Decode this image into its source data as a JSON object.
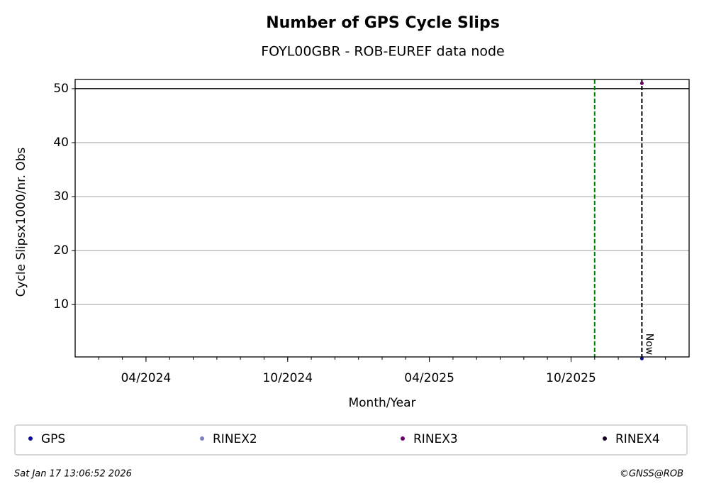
{
  "chart_data": {
    "type": "scatter",
    "title": "Number of GPS Cycle Slips",
    "subtitle": "FOYL00GBR - ROB-EUREF data node",
    "y_label": "Cycle Slipsx1000/nr. Obs",
    "x_label": "Month/Year",
    "xlim": [
      "2024-01",
      "2026-03"
    ],
    "xticks": [
      {
        "value": "2024-04",
        "label": "04/2024"
      },
      {
        "value": "2024-10",
        "label": "10/2024"
      },
      {
        "value": "2025-04",
        "label": "04/2025"
      },
      {
        "value": "2025-10",
        "label": "10/2025"
      }
    ],
    "ylim": [
      0.3,
      51.7
    ],
    "yticks": [
      10,
      20,
      30,
      40,
      50
    ],
    "grid": true,
    "series": [
      {
        "name": "GPS",
        "color": "#0a0a96",
        "x": [
          "2026-01"
        ],
        "values": [
          0
        ]
      },
      {
        "name": "RINEX2",
        "color": "#8080c0",
        "x": [],
        "values": []
      },
      {
        "name": "RINEX3",
        "color": "#6a006a",
        "x": [
          "2026-01"
        ],
        "values": [
          51
        ]
      },
      {
        "name": "RINEX4",
        "color": "#1a0020",
        "x": [],
        "values": []
      }
    ],
    "vlines": [
      {
        "x": "2025-11",
        "color": "#008000"
      },
      {
        "x": "2026-01",
        "color": "#000000",
        "label": "Now"
      }
    ],
    "hline": {
      "y": 50,
      "color": "#000000"
    },
    "footer_left": "Sat Jan 17 13:06:52 2026",
    "footer_right": "©GNSS@ROB"
  }
}
